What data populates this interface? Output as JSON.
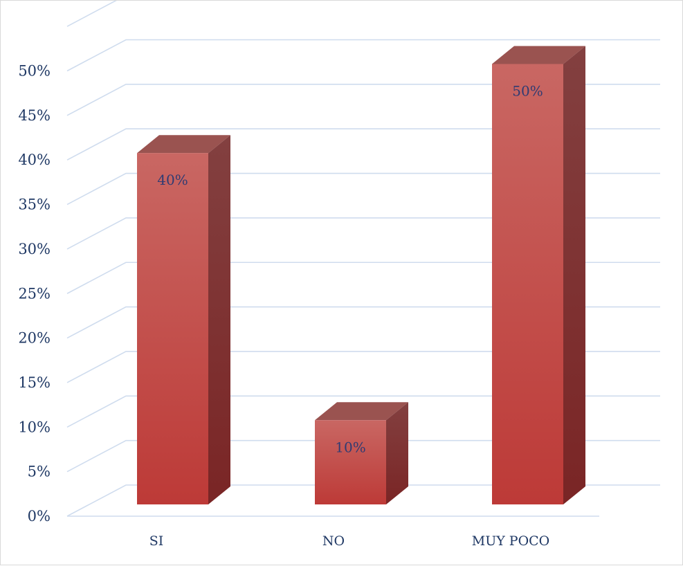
{
  "chart_data": {
    "type": "bar",
    "title": "",
    "xlabel": "",
    "ylabel": "",
    "categories": [
      "SI",
      "NO",
      "MUY POCO"
    ],
    "values": [
      40,
      10,
      50
    ],
    "value_labels": [
      "40%",
      "10%",
      "50%"
    ],
    "ylim": [
      0,
      55
    ],
    "y_ticks": [
      0,
      5,
      10,
      15,
      20,
      25,
      30,
      35,
      40,
      45,
      50
    ],
    "y_tick_labels": [
      "0%",
      "5%",
      "10%",
      "15%",
      "20%",
      "25%",
      "30%",
      "35%",
      "40%",
      "45%",
      "50%"
    ],
    "grid": true,
    "legend": "none",
    "style": "3d-column",
    "colors": {
      "bar_front": "#c0413d",
      "bar_top": "#9a5350",
      "bar_side": "#7d2b2b",
      "grid": "#cfdcee",
      "text": "#1f3864"
    }
  }
}
